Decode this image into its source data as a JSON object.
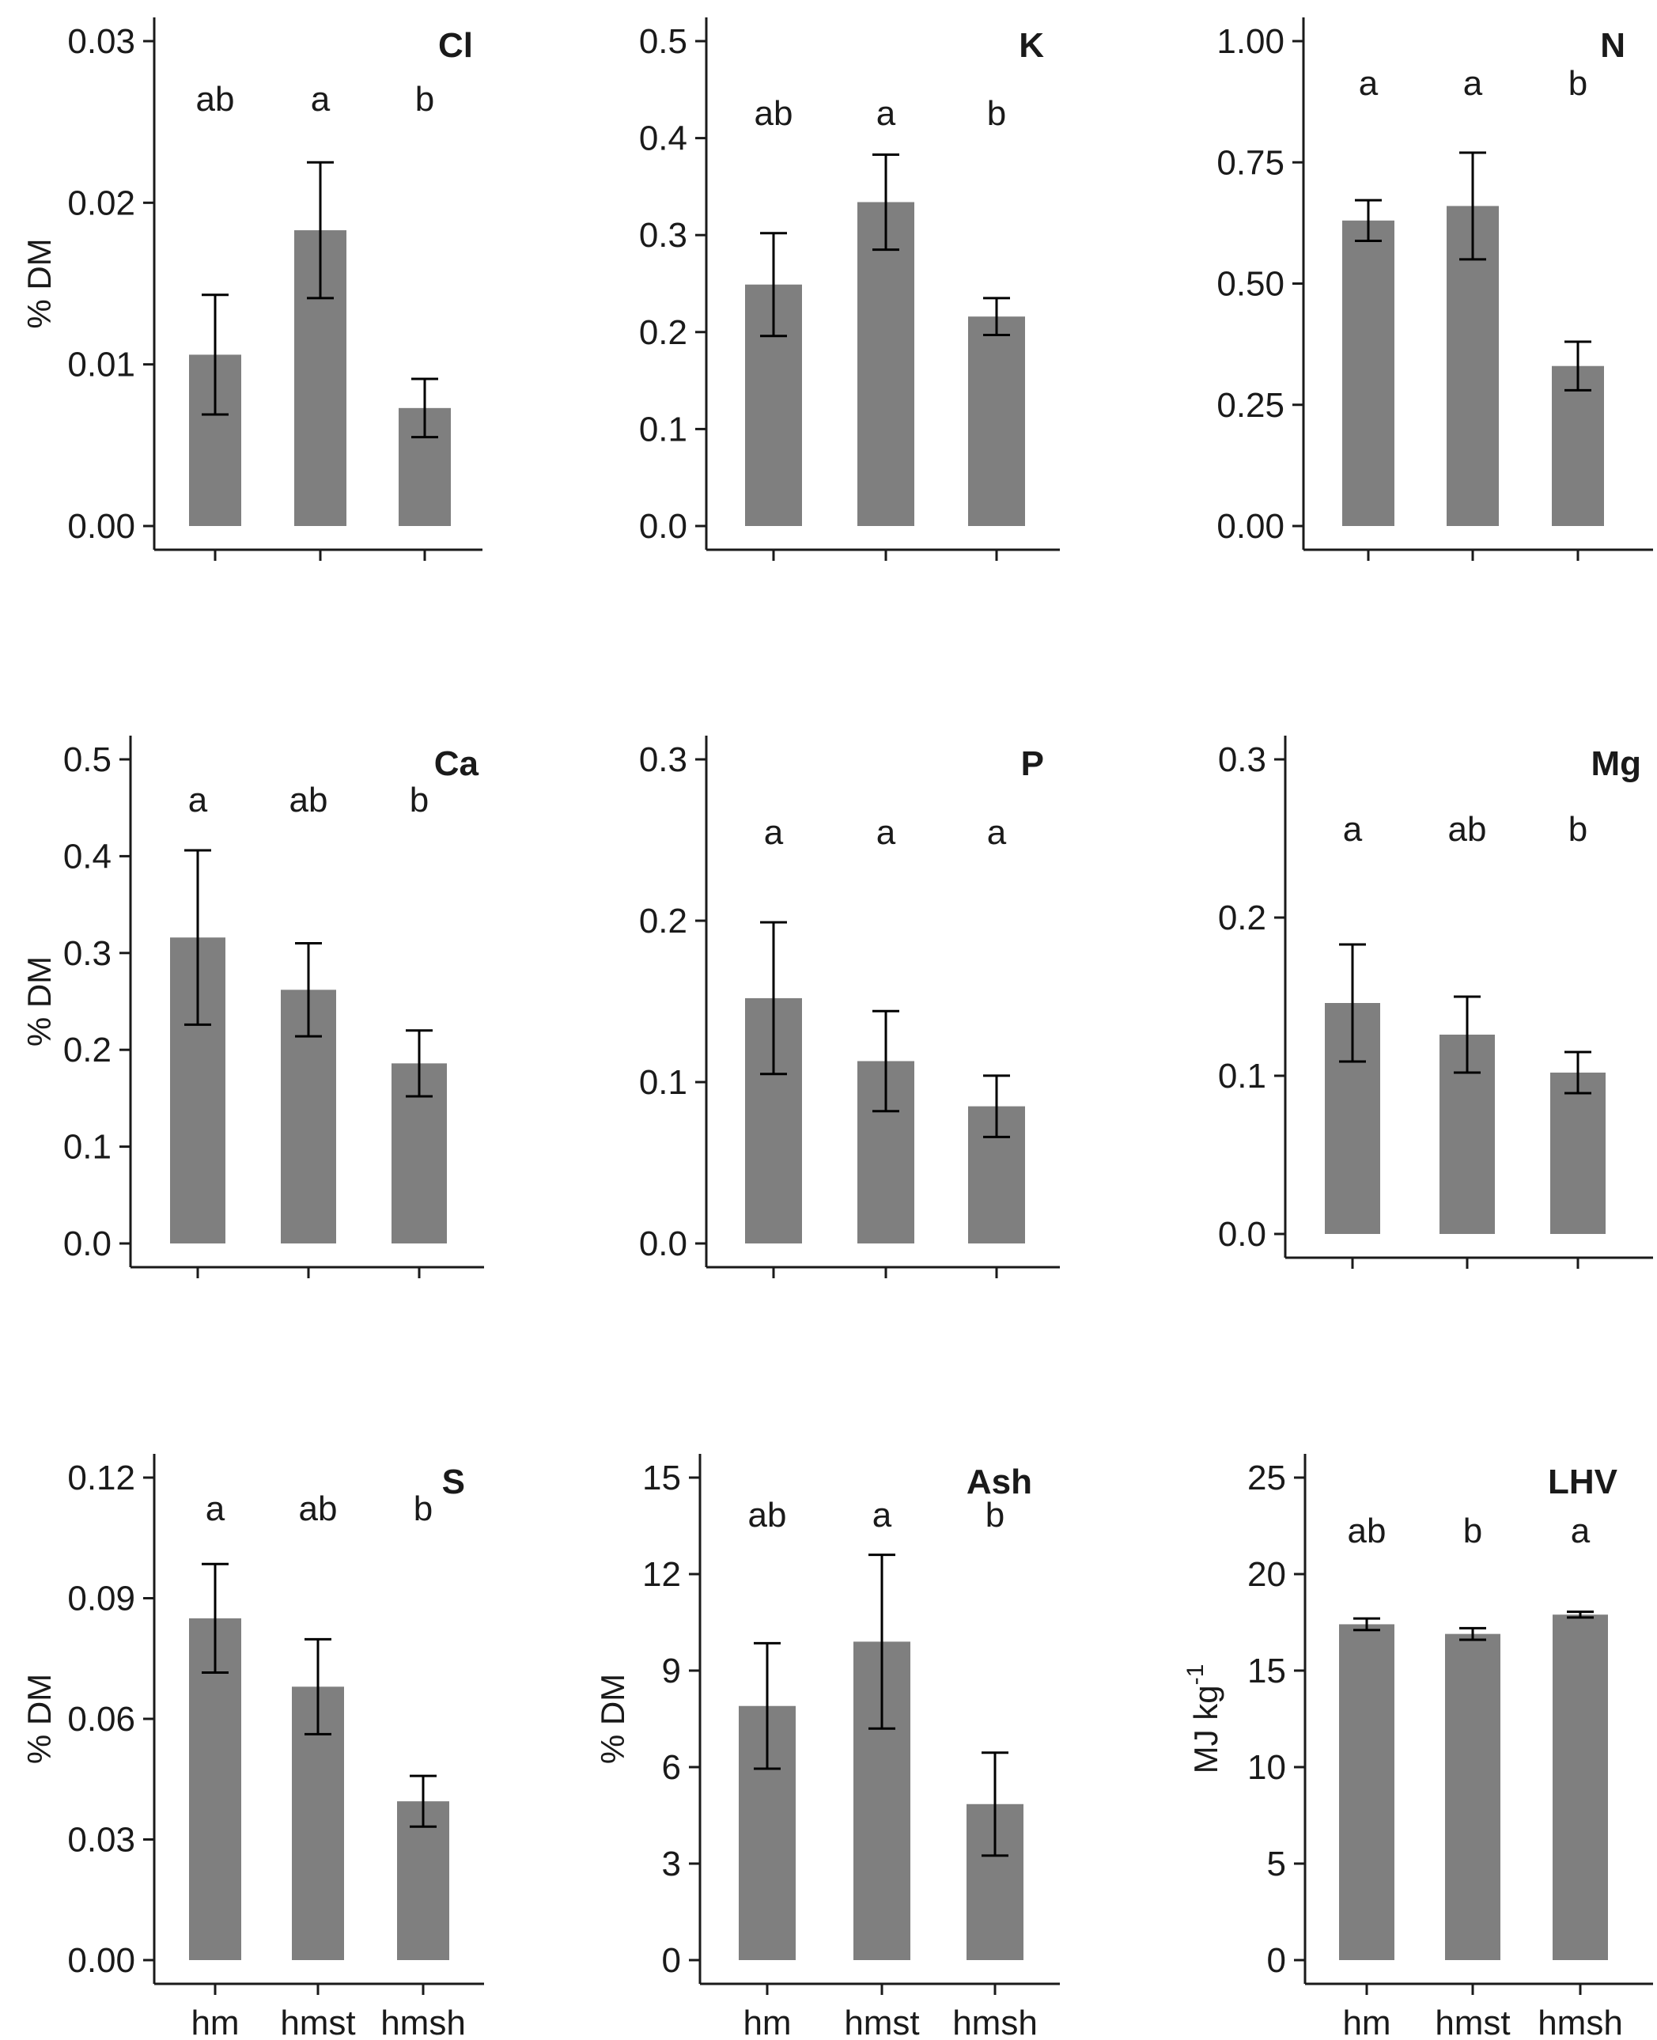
{
  "chart_data": [
    {
      "type": "bar",
      "title": "Cl",
      "ylabel": "% DM",
      "categories": [
        "hm",
        "hmst",
        "hmsh"
      ],
      "values": [
        0.0106,
        0.0183,
        0.0073
      ],
      "errors": [
        0.0037,
        0.0042,
        0.0018
      ],
      "letters": [
        "ab",
        "a",
        "b"
      ],
      "ylim": [
        0,
        0.03
      ],
      "yticks": [
        0,
        0.01,
        0.02,
        0.03
      ],
      "ytick_labels": [
        "0.00",
        "0.01",
        "0.02",
        "0.03"
      ],
      "show_xlabels": false
    },
    {
      "type": "bar",
      "title": "K",
      "ylabel": "",
      "categories": [
        "hm",
        "hmst",
        "hmsh"
      ],
      "values": [
        0.249,
        0.334,
        0.216
      ],
      "errors": [
        0.053,
        0.049,
        0.019
      ],
      "letters": [
        "ab",
        "a",
        "b"
      ],
      "ylim": [
        0,
        0.5
      ],
      "yticks": [
        0,
        0.1,
        0.2,
        0.3,
        0.4,
        0.5
      ],
      "ytick_labels": [
        "0.0",
        "0.1",
        "0.2",
        "0.3",
        "0.4",
        "0.5"
      ],
      "show_xlabels": false
    },
    {
      "type": "bar",
      "title": "N",
      "ylabel": "",
      "categories": [
        "hm",
        "hmst",
        "hmsh"
      ],
      "values": [
        0.63,
        0.66,
        0.33
      ],
      "errors": [
        0.042,
        0.11,
        0.05
      ],
      "letters": [
        "a",
        "a",
        "b"
      ],
      "ylim": [
        0,
        1.0
      ],
      "yticks": [
        0,
        0.25,
        0.5,
        0.75,
        1.0
      ],
      "ytick_labels": [
        "0.00",
        "0.25",
        "0.50",
        "0.75",
        "1.00"
      ],
      "show_xlabels": false
    },
    {
      "type": "bar",
      "title": "Ca",
      "ylabel": "% DM",
      "categories": [
        "hm",
        "hmst",
        "hmsh"
      ],
      "values": [
        0.316,
        0.262,
        0.186
      ],
      "errors": [
        0.09,
        0.048,
        0.034
      ],
      "letters": [
        "a",
        "ab",
        "b"
      ],
      "ylim": [
        0,
        0.5
      ],
      "yticks": [
        0,
        0.1,
        0.2,
        0.3,
        0.4,
        0.5
      ],
      "ytick_labels": [
        "0.0",
        "0.1",
        "0.2",
        "0.3",
        "0.4",
        "0.5"
      ],
      "show_xlabels": false
    },
    {
      "type": "bar",
      "title": "P",
      "ylabel": "",
      "categories": [
        "hm",
        "hmst",
        "hmsh"
      ],
      "values": [
        0.152,
        0.113,
        0.085
      ],
      "errors": [
        0.047,
        0.031,
        0.019
      ],
      "letters": [
        "a",
        "a",
        "a"
      ],
      "ylim": [
        0,
        0.3
      ],
      "yticks": [
        0,
        0.1,
        0.2,
        0.3
      ],
      "ytick_labels": [
        "0.0",
        "0.1",
        "0.2",
        "0.3"
      ],
      "show_xlabels": false
    },
    {
      "type": "bar",
      "title": "Mg",
      "ylabel": "",
      "categories": [
        "hm",
        "hmst",
        "hmsh"
      ],
      "values": [
        0.146,
        0.126,
        0.102
      ],
      "errors": [
        0.037,
        0.024,
        0.013
      ],
      "letters": [
        "a",
        "ab",
        "b"
      ],
      "ylim": [
        0,
        0.3
      ],
      "yticks": [
        0,
        0.1,
        0.2,
        0.3
      ],
      "ytick_labels": [
        "0.0",
        "0.1",
        "0.2",
        "0.3"
      ],
      "show_xlabels": false
    },
    {
      "type": "bar",
      "title": "S",
      "ylabel": "% DM",
      "categories": [
        "hm",
        "hmst",
        "hmsh"
      ],
      "values": [
        0.085,
        0.068,
        0.0395
      ],
      "errors": [
        0.0135,
        0.0118,
        0.0063
      ],
      "letters": [
        "a",
        "ab",
        "b"
      ],
      "ylim": [
        0,
        0.12
      ],
      "yticks": [
        0,
        0.03,
        0.06,
        0.09,
        0.12
      ],
      "ytick_labels": [
        "0.00",
        "0.03",
        "0.06",
        "0.09",
        "0.12"
      ],
      "show_xlabels": true
    },
    {
      "type": "bar",
      "title": "Ash",
      "ylabel": "% DM",
      "categories": [
        "hm",
        "hmst",
        "hmsh"
      ],
      "values": [
        7.9,
        9.9,
        4.85
      ],
      "errors": [
        1.95,
        2.7,
        1.6
      ],
      "letters": [
        "ab",
        "a",
        "b"
      ],
      "ylim": [
        0,
        15
      ],
      "yticks": [
        0,
        3,
        6,
        9,
        12,
        15
      ],
      "ytick_labels": [
        "0",
        "3",
        "6",
        "9",
        "12",
        "15"
      ],
      "show_xlabels": true
    },
    {
      "type": "bar",
      "title": "LHV",
      "ylabel": "MJ kg",
      "ylabel_sup": "-1",
      "categories": [
        "hm",
        "hmst",
        "hmsh"
      ],
      "values": [
        17.4,
        16.9,
        17.9
      ],
      "errors": [
        0.3,
        0.3,
        0.15
      ],
      "letters": [
        "ab",
        "b",
        "a"
      ],
      "ylim": [
        0,
        25
      ],
      "yticks": [
        0,
        5,
        10,
        15,
        20,
        25
      ],
      "ytick_labels": [
        "0",
        "5",
        "10",
        "15",
        "20",
        "25"
      ],
      "show_xlabels": true
    }
  ]
}
